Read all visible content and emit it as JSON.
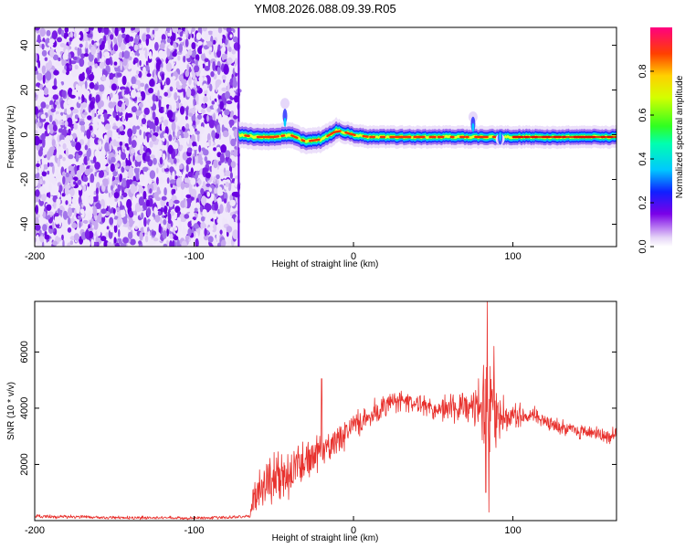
{
  "chart_data": [
    {
      "type": "heatmap",
      "title": "YM08.2026.088.09.39.R05",
      "xlabel": "Height of straight line (km)",
      "ylabel": "Frequency (Hz)",
      "xlim": [
        -200,
        165
      ],
      "ylim": [
        -50,
        48
      ],
      "xticks": [
        -200,
        -100,
        0,
        100
      ],
      "yticks": [
        -40,
        -20,
        0,
        20,
        40
      ],
      "noise_region_x": [
        -200,
        -72
      ],
      "ridge": {
        "x_start": -72,
        "x_end": 165,
        "frequency_hz": [
          [
            -72,
            0
          ],
          [
            -60,
            -1
          ],
          [
            -50,
            -1
          ],
          [
            -40,
            0
          ],
          [
            -30,
            -3
          ],
          [
            -20,
            -2
          ],
          [
            -10,
            2
          ],
          [
            0,
            0
          ],
          [
            10,
            -1
          ],
          [
            30,
            -1
          ],
          [
            60,
            -1
          ],
          [
            80,
            -1
          ],
          [
            100,
            -1
          ],
          [
            130,
            -1
          ],
          [
            165,
            -1
          ]
        ],
        "bursts": [
          {
            "x": -43,
            "f": 14
          },
          {
            "x": 75,
            "f": 8
          },
          {
            "x": 92,
            "f": -2
          }
        ]
      },
      "colorbar": {
        "label": "Normalized spectral amplitude",
        "range": [
          0,
          1
        ],
        "ticks": [
          "0.0",
          "0.2",
          "0.4",
          "0.6",
          "0.8"
        ]
      }
    },
    {
      "type": "line",
      "xlabel": "Height of straight line (km)",
      "ylabel": "SNR (10 * v/v)",
      "xlim": [
        -200,
        165
      ],
      "ylim": [
        0,
        7800
      ],
      "xticks": [
        -200,
        -100,
        0,
        100
      ],
      "yticks": [
        2000,
        4000,
        6000
      ],
      "color": "#e8322e",
      "series": [
        {
          "name": "SNR",
          "x": [
            -200,
            -150,
            -100,
            -80,
            -65,
            -62,
            -50,
            -40,
            -30,
            -20,
            -10,
            0,
            10,
            20,
            30,
            40,
            50,
            60,
            70,
            80,
            84,
            85,
            86,
            90,
            100,
            110,
            120,
            130,
            140,
            150,
            160,
            165
          ],
          "mean": [
            150,
            110,
            90,
            110,
            160,
            900,
            1500,
            1700,
            2000,
            2500,
            2800,
            3400,
            3800,
            4100,
            4300,
            4200,
            3900,
            4000,
            4100,
            4000,
            3800,
            3500,
            3600,
            3500,
            3600,
            3800,
            3500,
            3300,
            3200,
            3100,
            3000,
            3100
          ],
          "spread": [
            70,
            60,
            60,
            60,
            60,
            700,
            900,
            900,
            800,
            700,
            600,
            500,
            500,
            450,
            400,
            400,
            400,
            500,
            700,
            1000,
            2500,
            2500,
            2200,
            1200,
            500,
            350,
            300,
            300,
            300,
            250,
            250,
            250
          ],
          "spikes": [
            [
              -20,
              5050
            ],
            [
              84,
              7800
            ],
            [
              85,
              300
            ],
            [
              88,
              6200
            ],
            [
              83,
              1000
            ]
          ]
        }
      ]
    }
  ]
}
